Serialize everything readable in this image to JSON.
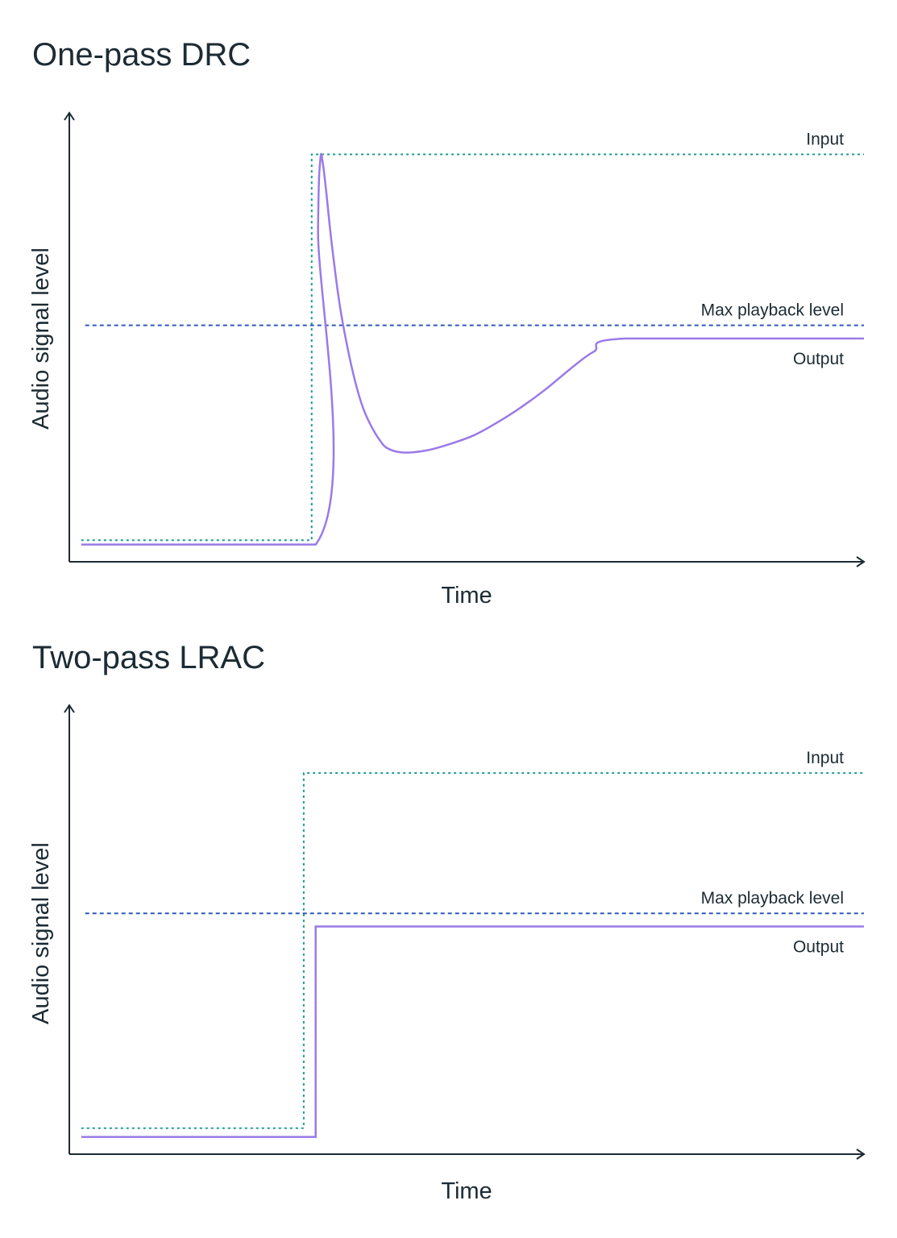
{
  "colors": {
    "axis": "#1c2b33",
    "input": "#1a9c8f",
    "max_playback": "#2a5bb8",
    "output": "#9a7ae8"
  },
  "chart_data": [
    {
      "type": "line",
      "title": "One-pass DRC",
      "xlabel": "Time",
      "ylabel": "Audio signal level",
      "xlim": [
        0,
        100
      ],
      "ylim": [
        0,
        100
      ],
      "grid": false,
      "series": [
        {
          "name": "Input",
          "style": "dotted",
          "color_key": "input",
          "x": [
            1.5,
            30.5,
            30.5,
            100
          ],
          "y": [
            4,
            4,
            92,
            92
          ]
        },
        {
          "name": "Max playback level",
          "style": "dashed",
          "color_key": "max_playback",
          "x": [
            2,
            100
          ],
          "y": [
            53,
            53
          ]
        },
        {
          "name": "Output",
          "style": "solid",
          "color_key": "output",
          "x": [
            1.5,
            31,
            31.3,
            31.6,
            31.9,
            32.3,
            33,
            34,
            35,
            36,
            37,
            38,
            39,
            40,
            42,
            45,
            48,
            51,
            54,
            57,
            60,
            63,
            66,
            70,
            100
          ],
          "y": [
            3,
            3,
            75,
            91,
            90,
            84,
            72,
            58,
            48,
            40,
            34,
            30,
            27,
            25,
            24,
            24.5,
            26,
            28,
            31,
            34.5,
            38.5,
            43,
            47,
            50,
            50
          ]
        }
      ]
    },
    {
      "type": "line",
      "title": "Two-pass LRAC",
      "xlabel": "Time",
      "ylabel": "Audio signal level",
      "xlim": [
        0,
        100
      ],
      "ylim": [
        0,
        100
      ],
      "grid": false,
      "series": [
        {
          "name": "Input",
          "style": "dotted",
          "color_key": "input",
          "x": [
            1.5,
            29.5,
            29.5,
            100
          ],
          "y": [
            5,
            5,
            86,
            86
          ]
        },
        {
          "name": "Max playback level",
          "style": "dashed",
          "color_key": "max_playback",
          "x": [
            2,
            100
          ],
          "y": [
            54,
            54
          ]
        },
        {
          "name": "Output",
          "style": "solid",
          "color_key": "output",
          "x": [
            1.5,
            31,
            31,
            100
          ],
          "y": [
            3,
            3,
            51,
            51
          ]
        }
      ]
    }
  ]
}
